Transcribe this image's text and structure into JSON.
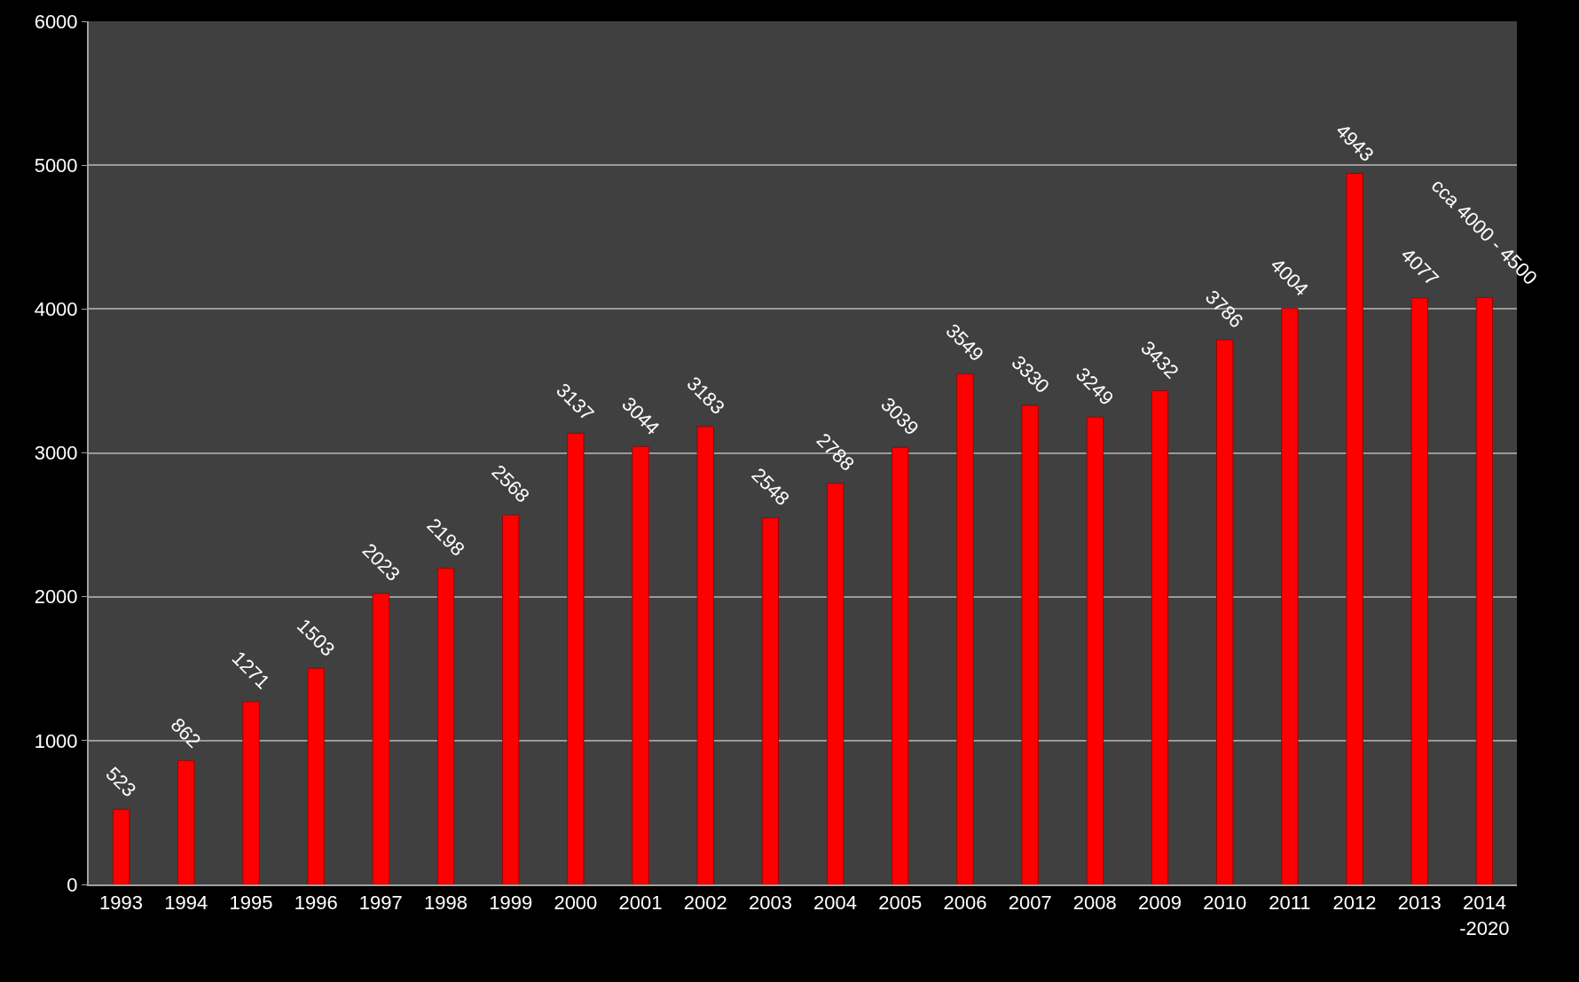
{
  "chart_data": {
    "type": "bar",
    "categories": [
      "1993",
      "1994",
      "1995",
      "1996",
      "1997",
      "1998",
      "1999",
      "2000",
      "2001",
      "2002",
      "2003",
      "2004",
      "2005",
      "2006",
      "2007",
      "2008",
      "2009",
      "2010",
      "2011",
      "2012",
      "2013",
      "2014\n-2020"
    ],
    "values": [
      523,
      862,
      1271,
      1503,
      2023,
      2198,
      2568,
      3137,
      3044,
      3183,
      2548,
      2788,
      3039,
      3549,
      3330,
      3249,
      3432,
      3786,
      4004,
      4943,
      4077,
      4080
    ],
    "value_labels": [
      "523",
      "862",
      "1271",
      "1503",
      "2023",
      "2198",
      "2568",
      "3137",
      "3044",
      "3183",
      "2548",
      "2788",
      "3039",
      "3549",
      "3330",
      "3249",
      "3432",
      "3786",
      "4004",
      "4943",
      "4077",
      "cca 4000 - 4500"
    ],
    "color": "#ff0000",
    "ylim": [
      0,
      6000
    ],
    "yticks": [
      0,
      1000,
      2000,
      3000,
      4000,
      5000,
      6000
    ],
    "grid": "y",
    "legend": false
  }
}
